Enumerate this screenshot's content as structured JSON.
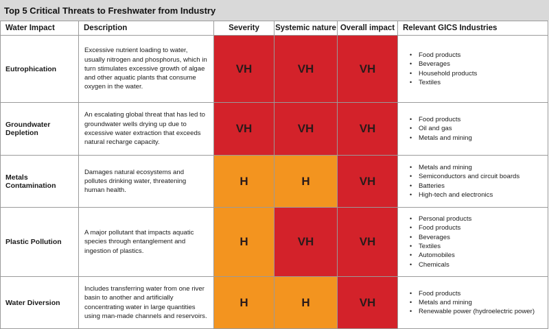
{
  "title": "Top 5 Critical Threats to Freshwater from Industry",
  "colors": {
    "VH": "#d3222a",
    "H": "#f3941f",
    "header_bar": "#d9d9d9",
    "rating_text": "#2a1a1a"
  },
  "headers": {
    "impact": "Water Impact",
    "description": "Description",
    "severity": "Severity",
    "systemic": "Systemic nature",
    "overall": "Overall impact",
    "industries": "Relevant GICS Industries"
  },
  "rows": [
    {
      "impact": "Eutrophication",
      "description": "Excessive nutrient loading to water, usually nitrogen and phosphorus, which in turn stimulates excessive growth of algae and other aquatic plants that consume oxygen in the water.",
      "severity": "VH",
      "systemic": "VH",
      "overall": "VH",
      "industries": [
        "Food products",
        "Beverages",
        "Household products",
        "Textiles"
      ]
    },
    {
      "impact": "Groundwater Depletion",
      "description": "An escalating global threat that has led to groundwater wells drying up due to excessive water extraction that exceeds natural recharge capacity.",
      "severity": "VH",
      "systemic": "VH",
      "overall": "VH",
      "industries": [
        "Food products",
        "Oil and gas",
        "Metals and mining"
      ]
    },
    {
      "impact": "Metals Contamination",
      "description": "Damages natural ecosystems and pollutes drinking water, threatening human health.",
      "severity": "H",
      "systemic": "H",
      "overall": "VH",
      "industries": [
        "Metals and mining",
        "Semiconductors and circuit boards",
        "Batteries",
        "High-tech and electronics"
      ]
    },
    {
      "impact": "Plastic Pollution",
      "description": "A major pollutant that impacts aquatic species through entanglement and ingestion of plastics.",
      "severity": "H",
      "systemic": "VH",
      "overall": "VH",
      "industries": [
        "Personal products",
        "Food products",
        "Beverages",
        "Textiles",
        "Automobiles",
        "Chemicals"
      ]
    },
    {
      "impact": "Water Diversion",
      "description": "Includes transferring water from one river basin to another and artificially concentrating water in large quantities using man-made channels and reservoirs.",
      "severity": "H",
      "systemic": "H",
      "overall": "VH",
      "industries": [
        "Food products",
        "Metals and mining",
        "Renewable power (hydroelectric power)"
      ]
    }
  ]
}
